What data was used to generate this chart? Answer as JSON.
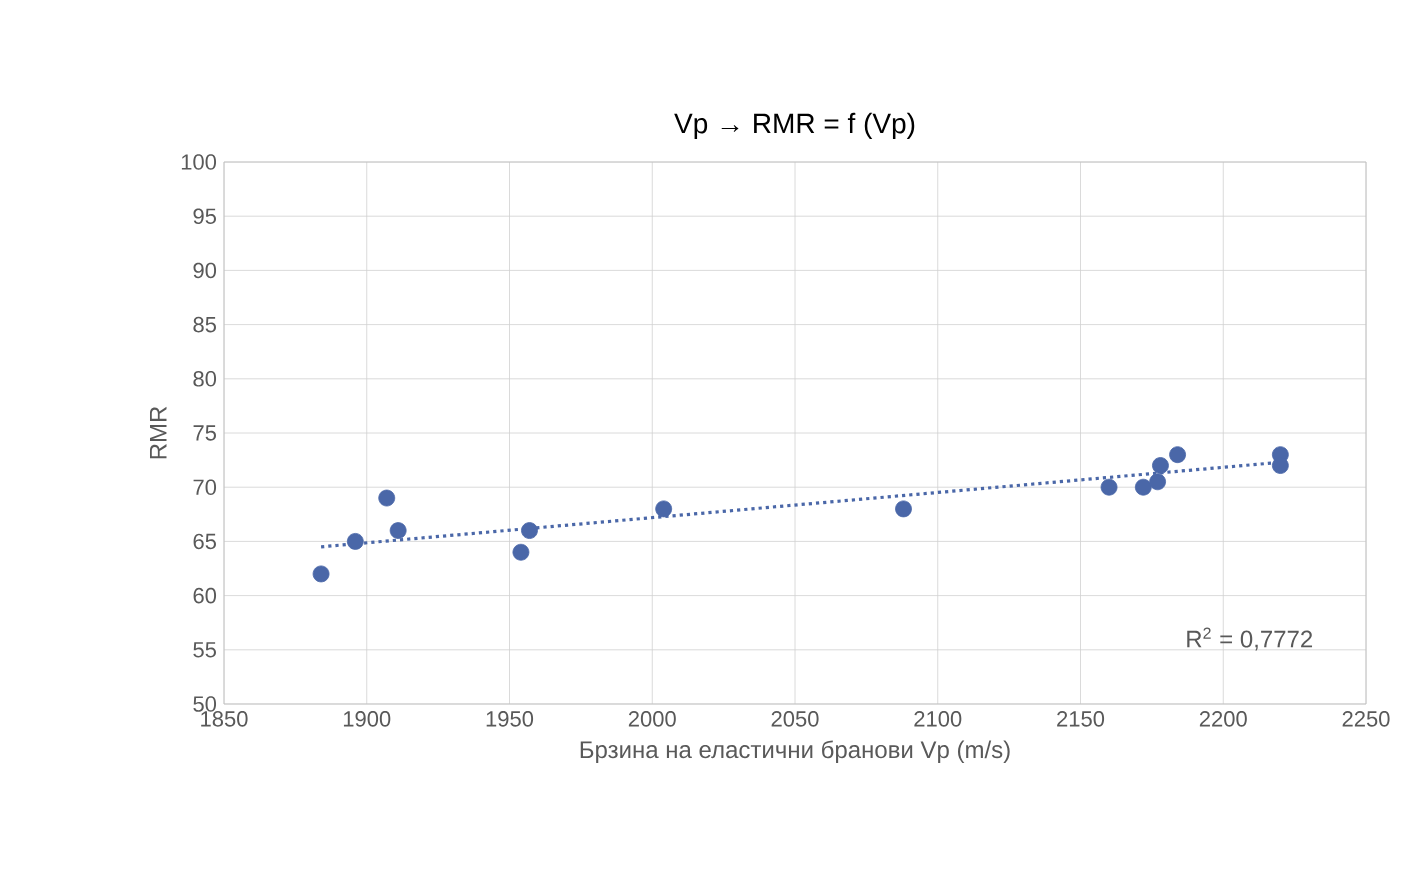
{
  "chart_data": {
    "type": "scatter",
    "title": "Vp → RMR = f (Vp)",
    "xlabel": "Брзина на еластични бранови Vp (m/s)",
    "ylabel": "RMR",
    "series": [
      {
        "color": "#4a67a8",
        "marker": "circle",
        "x": [
          1884,
          1896,
          1907,
          1911,
          1954,
          1957,
          2004,
          2088,
          2160,
          2172,
          2177,
          2178,
          2184,
          2220,
          2220
        ],
        "values": [
          62,
          65,
          69,
          66,
          64,
          66,
          68,
          68,
          70,
          70,
          70.5,
          72,
          73,
          73,
          72
        ]
      },
      {
        "type": "line",
        "color": "#4a67a8",
        "line_style": "dotted",
        "marker": "none",
        "x": [
          1884,
          2220
        ],
        "values": [
          64.5,
          72.3
        ]
      }
    ],
    "xlim": [
      1850,
      2250
    ],
    "xticks": [
      1850,
      1900,
      1950,
      2000,
      2050,
      2100,
      2150,
      2200,
      2250
    ],
    "ylim": [
      50,
      100
    ],
    "yticks": [
      50,
      55,
      60,
      65,
      70,
      75,
      80,
      85,
      90,
      95,
      100
    ],
    "grid": true,
    "annotations": [
      "R$^{2}$ = 0,7772"
    ]
  }
}
